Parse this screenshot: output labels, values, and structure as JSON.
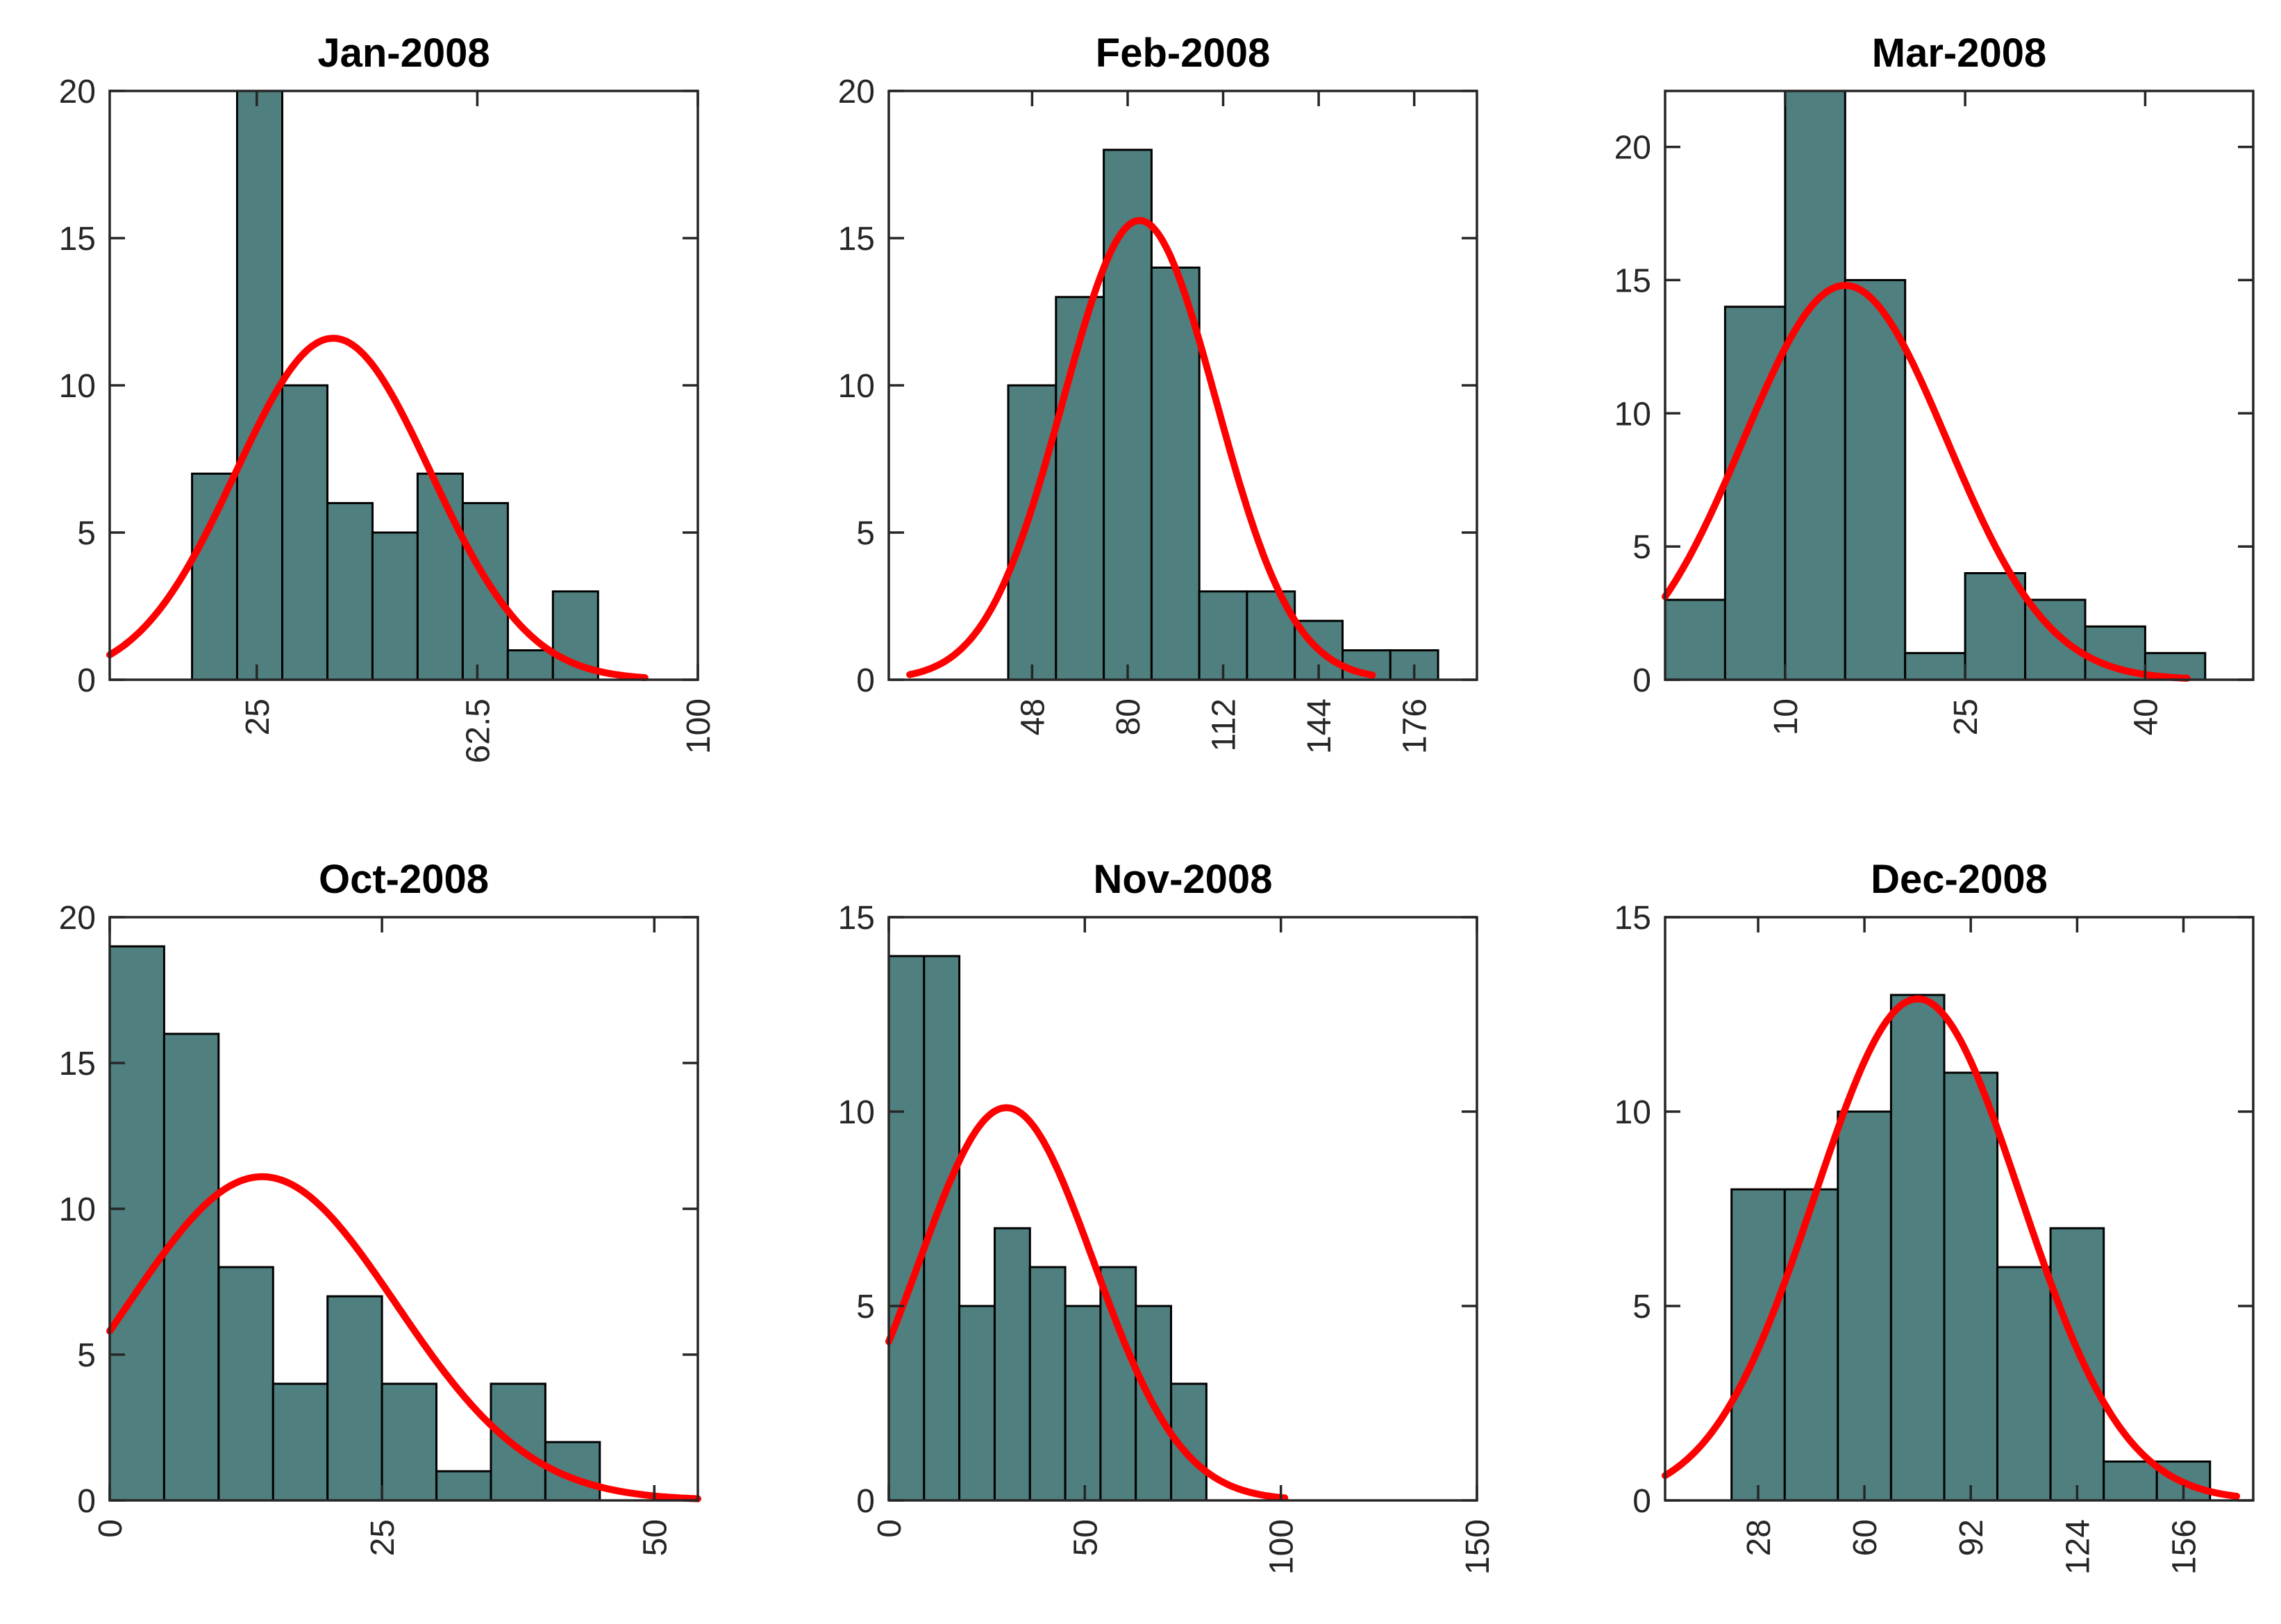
{
  "figure": {
    "background": "#FFFFFF",
    "grid_rows": 2,
    "grid_cols": 3
  },
  "colors": {
    "bar_fill": "#4F7F7E",
    "bar_edge": "#000000",
    "fit_curve": "#FF0000",
    "axis": "#262626",
    "tick_label": "#262626",
    "title": "#000000"
  },
  "chart_data": [
    {
      "type": "bar",
      "title": "Jan-2008",
      "row": 0,
      "col": 0,
      "xlim": [
        0,
        100
      ],
      "ylim": [
        0,
        20
      ],
      "xticks": {
        "values": [
          25,
          62.5,
          100
        ],
        "labels": [
          "25",
          "62.5",
          "100"
        ],
        "rotation_deg": 90
      },
      "yticks": {
        "values": [
          0,
          5,
          10,
          15,
          20
        ],
        "labels": [
          "0",
          "5",
          "10",
          "15",
          "20"
        ]
      },
      "bins": {
        "start": 14,
        "width": 7.67,
        "counts": [
          7,
          20,
          10,
          6,
          5,
          7,
          6,
          1,
          3
        ],
        "clipped_at_axis_top": [
          1
        ]
      },
      "normal_fit": {
        "mean": 38,
        "sd": 16.6,
        "peak": 11.6,
        "x_range": [
          0,
          91
        ]
      },
      "n_total": 65,
      "grid": false,
      "legend": null
    },
    {
      "type": "bar",
      "title": "Feb-2008",
      "row": 0,
      "col": 1,
      "xlim": [
        0,
        197
      ],
      "ylim": [
        0,
        20
      ],
      "xticks": {
        "values": [
          48,
          80,
          112,
          144,
          176
        ],
        "labels": [
          "48",
          "80",
          "112",
          "144",
          "176"
        ],
        "rotation_deg": 90
      },
      "yticks": {
        "values": [
          0,
          5,
          10,
          15,
          20
        ],
        "labels": [
          "0",
          "5",
          "10",
          "15",
          "20"
        ]
      },
      "bins": {
        "start": 40,
        "width": 16,
        "counts": [
          10,
          13,
          18,
          14,
          3,
          3,
          2,
          1,
          1
        ],
        "clipped_at_axis_top": []
      },
      "normal_fit": {
        "mean": 84,
        "sd": 25.7,
        "peak": 15.6,
        "x_range": [
          7,
          162
        ]
      },
      "n_total": 65,
      "grid": false,
      "legend": null
    },
    {
      "type": "bar",
      "title": "Mar-2008",
      "row": 0,
      "col": 2,
      "xlim": [
        0,
        49
      ],
      "ylim": [
        0,
        22.1
      ],
      "xticks": {
        "values": [
          10,
          25,
          40
        ],
        "labels": [
          "10",
          "25",
          "40"
        ],
        "rotation_deg": 90
      },
      "yticks": {
        "values": [
          0,
          5,
          10,
          15,
          20
        ],
        "labels": [
          "0",
          "5",
          "10",
          "15",
          "20"
        ]
      },
      "bins": {
        "start": 0,
        "width": 5,
        "counts": [
          3,
          14,
          23,
          15,
          1,
          4,
          3,
          2,
          1
        ],
        "clipped_at_axis_top": [
          2
        ]
      },
      "normal_fit": {
        "mean": 15,
        "sd": 8.5,
        "peak": 14.8,
        "x_range": [
          0,
          43.5
        ]
      },
      "n_total": 66,
      "grid": false,
      "legend": null
    },
    {
      "type": "bar",
      "title": "Oct-2008",
      "row": 1,
      "col": 0,
      "xlim": [
        0,
        54
      ],
      "ylim": [
        0,
        20
      ],
      "xticks": {
        "values": [
          0,
          25,
          50
        ],
        "labels": [
          "0",
          "25",
          "50"
        ],
        "rotation_deg": 90
      },
      "yticks": {
        "values": [
          0,
          5,
          10,
          15,
          20
        ],
        "labels": [
          "0",
          "5",
          "10",
          "15",
          "20"
        ]
      },
      "bins": {
        "start": 0,
        "width": 5,
        "counts": [
          19,
          16,
          8,
          4,
          7,
          4,
          1,
          4,
          2
        ],
        "clipped_at_axis_top": []
      },
      "normal_fit": {
        "mean": 14,
        "sd": 12.3,
        "peak": 11.1,
        "x_range": [
          0,
          54
        ]
      },
      "n_total": 65,
      "grid": false,
      "legend": null
    },
    {
      "type": "bar",
      "title": "Nov-2008",
      "row": 1,
      "col": 1,
      "xlim": [
        0,
        150
      ],
      "ylim": [
        0,
        15
      ],
      "xticks": {
        "values": [
          0,
          50,
          100,
          150
        ],
        "labels": [
          "0",
          "50",
          "100",
          "150"
        ],
        "rotation_deg": 90
      },
      "yticks": {
        "values": [
          0,
          5,
          10,
          15
        ],
        "labels": [
          "0",
          "5",
          "10",
          "15"
        ]
      },
      "bins": {
        "start": 0,
        "width": 9,
        "counts": [
          14,
          14,
          5,
          7,
          6,
          5,
          6,
          5,
          3
        ],
        "clipped_at_axis_top": []
      },
      "normal_fit": {
        "mean": 30,
        "sd": 22.3,
        "peak": 10.1,
        "x_range": [
          0,
          101
        ]
      },
      "n_total": 65,
      "grid": false,
      "legend": null
    },
    {
      "type": "bar",
      "title": "Dec-2008",
      "row": 1,
      "col": 2,
      "xlim": [
        0,
        177
      ],
      "ylim": [
        0,
        15
      ],
      "xticks": {
        "values": [
          28,
          60,
          92,
          124,
          156
        ],
        "labels": [
          "28",
          "60",
          "92",
          "124",
          "156"
        ],
        "rotation_deg": 90
      },
      "yticks": {
        "values": [
          0,
          5,
          10,
          15
        ],
        "labels": [
          "0",
          "5",
          "10",
          "15"
        ]
      },
      "bins": {
        "start": 20,
        "width": 16,
        "counts": [
          8,
          8,
          10,
          13,
          11,
          6,
          7,
          1,
          1
        ],
        "clipped_at_axis_top": []
      },
      "normal_fit": {
        "mean": 76,
        "sd": 31,
        "peak": 12.9,
        "x_range": [
          0,
          172
        ]
      },
      "n_total": 65,
      "grid": false,
      "legend": null
    }
  ]
}
